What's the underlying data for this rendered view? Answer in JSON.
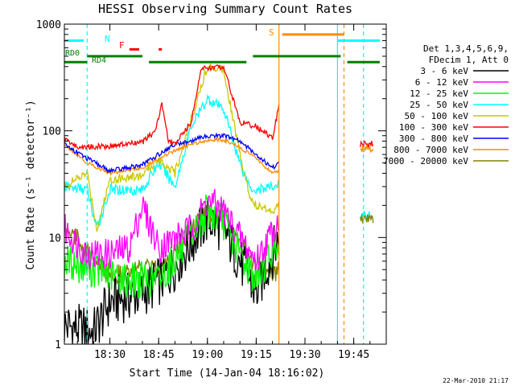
{
  "chart_data": {
    "type": "line",
    "title": "HESSI Observing Summary Count Rates",
    "xlabel": "Start Time (14-Jan-04 18:16:02)",
    "ylabel": "Count Rate (s⁻¹ detector⁻¹)",
    "y_scale": "log",
    "ylim": [
      1,
      1000
    ],
    "xlim": [
      "18:16",
      "19:55"
    ],
    "x_tick_labels": [
      "18:30",
      "18:45",
      "19:00",
      "19:15",
      "19:30",
      "19:45"
    ],
    "y_tick_labels": [
      "1",
      "10",
      "100",
      "1000"
    ],
    "grid": false,
    "legend_position": "right",
    "legend_header": [
      "Det 1,3,4,5,6,9,",
      "FDecim 1, Att 0"
    ],
    "series": [
      {
        "name": "3 - 6 keV",
        "color": "#000000",
        "x": [
          "18:16",
          "18:25",
          "18:30",
          "18:40",
          "18:48",
          "18:55",
          "19:00",
          "19:05",
          "19:10",
          "19:15",
          "19:22"
        ],
        "values": [
          1.5,
          1.3,
          2.5,
          3.0,
          4.5,
          9,
          15,
          12,
          6,
          3,
          10
        ]
      },
      {
        "name": "6 - 12 keV",
        "color": "#ff00ff",
        "x": [
          "18:16",
          "18:23",
          "18:30",
          "18:36",
          "18:40",
          "18:45",
          "18:55",
          "19:00",
          "19:05",
          "19:10",
          "19:15",
          "19:22"
        ],
        "values": [
          12,
          7,
          7,
          8,
          20,
          8,
          12,
          22,
          18,
          10,
          6,
          15
        ]
      },
      {
        "name": "12 - 25 keV",
        "color": "#00ff00",
        "x": [
          "18:16",
          "18:25",
          "18:35",
          "18:45",
          "18:55",
          "19:00",
          "19:05",
          "19:10",
          "19:15",
          "19:22"
        ],
        "values": [
          6,
          5,
          4,
          4,
          10,
          18,
          14,
          7,
          4,
          10
        ]
      },
      {
        "name": "25 - 50 keV",
        "color": "#00ffff",
        "x": [
          "18:16",
          "18:23",
          "18:26",
          "18:30",
          "18:40",
          "18:45",
          "18:50",
          "18:55",
          "19:00",
          "19:05",
          "19:10",
          "19:13",
          "19:15",
          "19:20",
          "19:22"
        ],
        "values": [
          30,
          28,
          12,
          28,
          28,
          50,
          30,
          110,
          200,
          160,
          50,
          30,
          28,
          30,
          32
        ]
      },
      {
        "name": "50 - 100 keV",
        "color": "#c8c800",
        "x": [
          "18:16",
          "18:23",
          "18:26",
          "18:30",
          "18:40",
          "18:45",
          "18:50",
          "18:55",
          "19:00",
          "19:05",
          "19:10",
          "19:13",
          "19:15",
          "19:20",
          "19:22"
        ],
        "values": [
          30,
          40,
          12,
          35,
          38,
          55,
          40,
          130,
          400,
          380,
          60,
          25,
          20,
          18,
          20
        ]
      },
      {
        "name": "100 - 300 keV",
        "color": "#ff0000",
        "x": [
          "18:16",
          "18:20",
          "18:30",
          "18:40",
          "18:44",
          "18:46",
          "18:48",
          "18:50",
          "18:55",
          "18:58",
          "19:05",
          "19:10",
          "19:15",
          "19:20",
          "19:22"
        ],
        "values": [
          85,
          70,
          72,
          78,
          100,
          180,
          80,
          75,
          120,
          380,
          400,
          120,
          110,
          85,
          170
        ]
      },
      {
        "name": "300 - 800 keV",
        "color": "#0000ff",
        "x": [
          "18:16",
          "18:23",
          "18:30",
          "18:40",
          "18:45",
          "18:50",
          "18:55",
          "19:00",
          "19:05",
          "19:10",
          "19:15",
          "19:20",
          "19:22"
        ],
        "values": [
          75,
          55,
          42,
          48,
          60,
          75,
          80,
          90,
          90,
          80,
          60,
          45,
          50
        ]
      },
      {
        "name": "800 - 7000 keV",
        "color": "#ff8c00",
        "x": [
          "18:16",
          "18:23",
          "18:30",
          "18:40",
          "18:45",
          "18:50",
          "18:55",
          "19:00",
          "19:05",
          "19:10",
          "19:15",
          "19:20",
          "19:22"
        ],
        "values": [
          75,
          50,
          40,
          45,
          55,
          65,
          75,
          82,
          82,
          70,
          55,
          40,
          42
        ]
      },
      {
        "name": "7000 - 20000 keV",
        "color": "#808000",
        "x": [
          "18:16",
          "18:20",
          "18:25",
          "18:30",
          "18:40",
          "18:45",
          "18:55",
          "19:00",
          "19:05",
          "19:10",
          "19:15",
          "19:20",
          "19:22"
        ],
        "values": [
          13,
          10,
          6,
          4.5,
          5,
          5,
          12,
          18,
          15,
          9,
          5,
          4.5,
          5
        ]
      }
    ],
    "flags": [
      {
        "label": "N",
        "color": "#00ffff",
        "level": 700
      },
      {
        "label": "F",
        "color": "#ff0000",
        "level": 580
      },
      {
        "label": "RD0",
        "color": "#008000",
        "level": 500
      },
      {
        "label": "RD4",
        "color": "#008000",
        "level": 440
      },
      {
        "label": "S",
        "color": "#ff8c00",
        "level": 800
      }
    ],
    "markers": {
      "saa_start": "19:22",
      "cyan_lines": [
        "18:23",
        "19:40",
        "19:48"
      ],
      "orange_dashed": "19:42"
    },
    "late_segment": {
      "x": [
        "19:47",
        "19:51"
      ],
      "values": {
        "red": 75,
        "orange": 70,
        "cyan": 16,
        "olive": 15
      }
    }
  },
  "footer": {
    "timestamp": "22-Mar-2010 21:17"
  }
}
